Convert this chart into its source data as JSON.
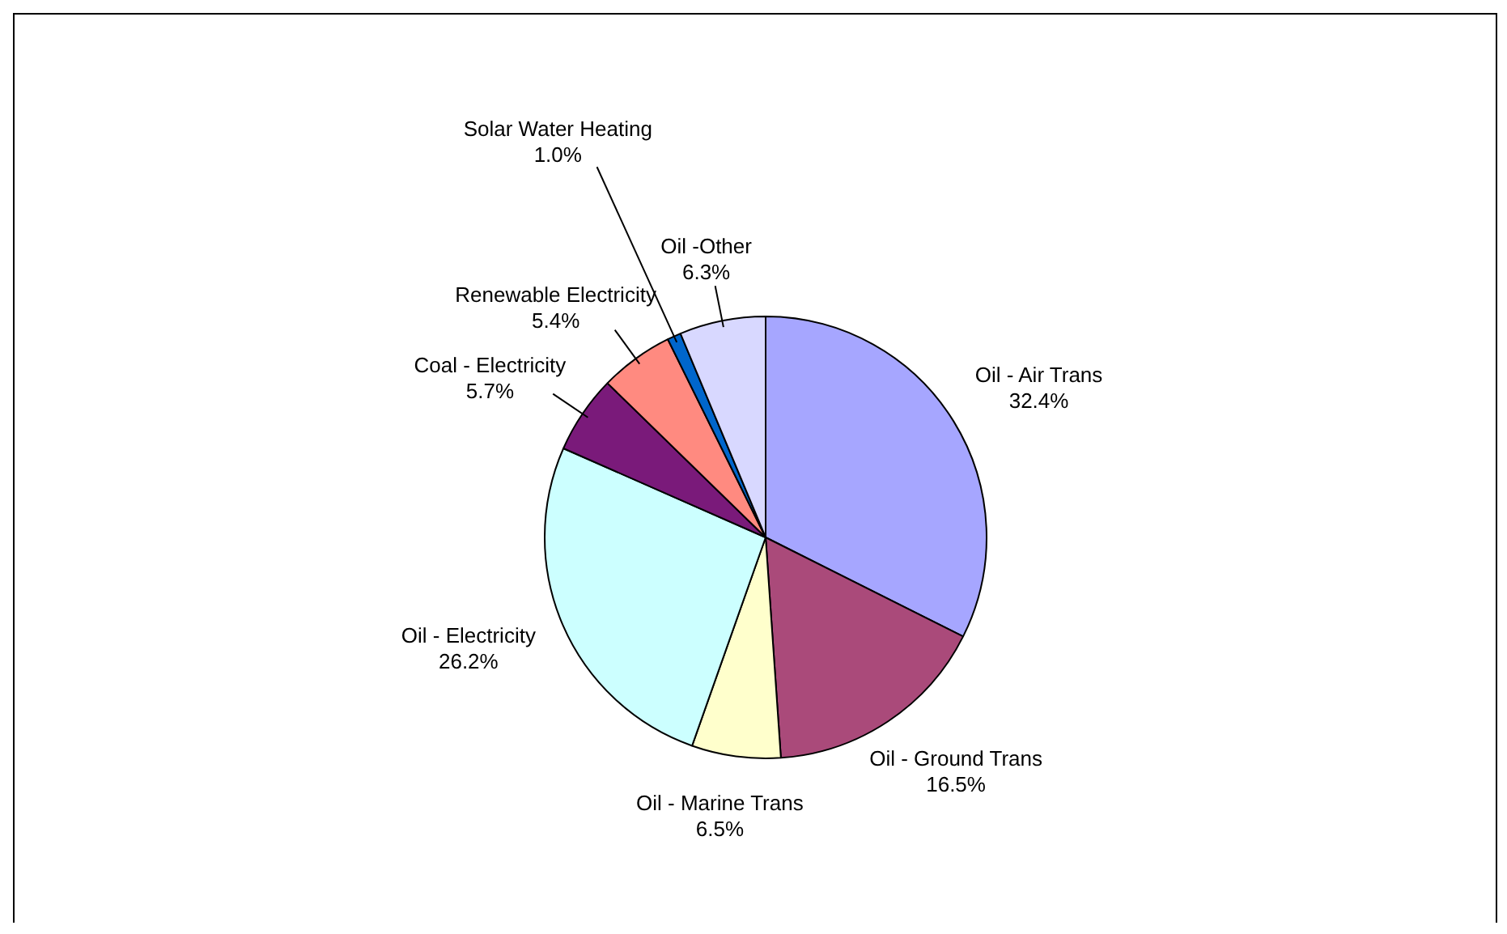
{
  "chart_data": {
    "type": "pie",
    "categories": [
      "Oil - Air Trans",
      "Oil - Ground Trans",
      "Oil - Marine Trans",
      "Oil - Electricity",
      "Coal - Electricity",
      "Renewable Electricity",
      "Solar Water Heating",
      "Oil -Other"
    ],
    "values": [
      32.4,
      16.5,
      6.5,
      26.2,
      5.7,
      5.4,
      1.0,
      6.3
    ],
    "value_labels": [
      "32.4%",
      "16.5%",
      "6.5%",
      "26.2%",
      "5.7%",
      "5.4%",
      "1.0%",
      "6.3%"
    ],
    "colors": [
      "#a6a6ff",
      "#aa4a7a",
      "#ffffcc",
      "#ccffff",
      "#7a1a7a",
      "#ff8a80",
      "#0066cc",
      "#d8d8ff"
    ],
    "legend": false
  }
}
